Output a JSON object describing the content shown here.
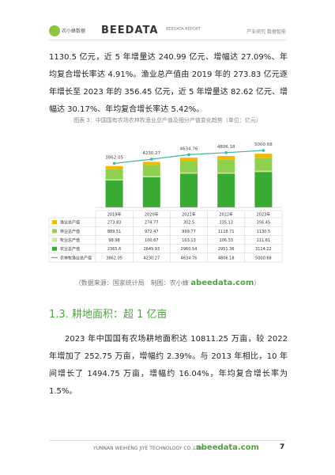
{
  "header": {
    "brand": "BEEDATA",
    "logo_text": "农小蜂数据",
    "report": "BEEDATA REPORT",
    "right": "产业研究 数据智能"
  },
  "paragraphs": [
    "1130.5 亿元，近 5 年增量达 240.99 亿元、增幅达 27.09%、年均复合增长率达 4.91%。渔业总产值由 2019 年的 273.83 亿元逐年增长至 2023 年的 356.45 亿元，近 5 年增量达 82.62 亿元、增幅达 30.17%、年均复合增长率达 5.42%。"
  ],
  "chart_data": {
    "type": "bar",
    "title": "图表 3：中国国有农场农林牧渔业总产值及细分产值变化趋势（单位：亿元）",
    "categories": [
      "2019年",
      "2020年",
      "2021年",
      "2022年",
      "2023年"
    ],
    "series": [
      {
        "name": "农业总产值",
        "color": "#3aaa35",
        "type": "bar",
        "values": [
          2365.6,
          2649.93,
          2960.54,
          2951.36,
          3114.22
        ]
      },
      {
        "name": "牧业总产值",
        "color": "#c8e6a0",
        "type": "bar",
        "values": [
          98.98,
          100.67,
          103.13,
          106.33,
          111.61
        ]
      },
      {
        "name": "林业总产值",
        "color": "#8fd14f",
        "type": "bar",
        "values": [
          889.51,
          972.47,
          999.77,
          1118.71,
          1130.5
        ]
      },
      {
        "name": "渔业总产值",
        "color": "#f5b800",
        "type": "bar",
        "values": [
          273.83,
          274.77,
          302.5,
          335.13,
          356.45
        ]
      },
      {
        "name": "农林牧渔业总产值",
        "color": "#3bb8a0",
        "type": "line",
        "values": [
          3862.05,
          4230.27,
          4634.76,
          4806.18,
          5000.68
        ]
      }
    ]
  },
  "caption": {
    "text": "（数据来源：国家统计局　制图：农小蜂",
    "site": "abeedata.com",
    "close": "）"
  },
  "section": {
    "heading": "1.3. 耕地面积：超 1 亿亩",
    "paragraph": "2023 年中国国有农场耕地面积达 10811.25 万亩，较 2022 年增加了 252.75 万亩，增幅约 2.39%。与 2013 年相比，10 年间增长了 1494.75 万亩，增幅约 16.04%，年均复合增长率为 1.5%。"
  },
  "footer": {
    "company": "YUNNAN WEIHENG JIYE TECHNOLOGY CO.,LTD.",
    "site": "abeedata.com",
    "page": "7"
  }
}
